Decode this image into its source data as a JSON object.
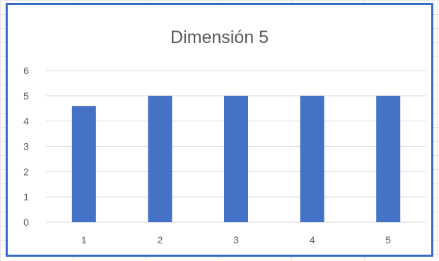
{
  "chart_data": {
    "type": "bar",
    "title": "Dimensión 5",
    "categories": [
      "1",
      "2",
      "3",
      "4",
      "5"
    ],
    "series": [
      {
        "values": [
          4.6,
          5,
          5,
          5,
          5
        ]
      }
    ],
    "ylim": [
      0,
      6
    ],
    "yticks": [
      "0",
      "1",
      "2",
      "3",
      "4",
      "5",
      "6"
    ],
    "grid": true,
    "colors": {
      "bar": "#4472c4",
      "gridline": "#d9d9d9",
      "border": "#3a6cc4",
      "text": "#595959"
    }
  }
}
